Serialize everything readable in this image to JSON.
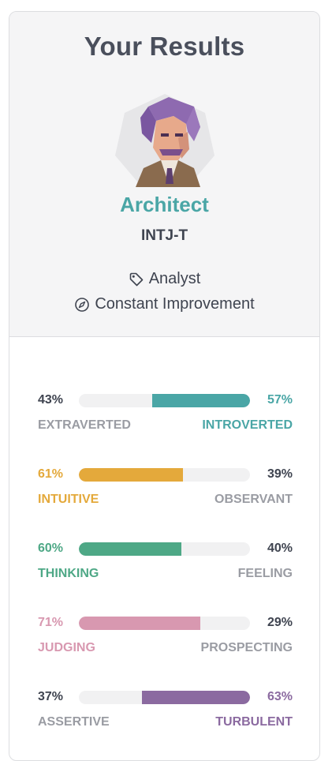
{
  "header": {
    "title": "Your Results"
  },
  "profile": {
    "avatar_icon": "architect-avatar",
    "type_name": "Architect",
    "type_code": "INTJ-T",
    "role_icon": "tag-icon",
    "role": "Analyst",
    "strategy_icon": "compass-icon",
    "strategy": "Constant Improvement"
  },
  "colors": {
    "architect_teal": "#4aa6a6",
    "mind": "#4aa6a6",
    "energy": "#e4a93b",
    "nature": "#4ea886",
    "tactics": "#d898b0",
    "identity": "#8b6aa0",
    "muted": "#9a9ca3",
    "dark": "#3f4450"
  },
  "traits": [
    {
      "left_pct": "43%",
      "right_pct": "57%",
      "left_label": "EXTRAVERTED",
      "right_label": "INTROVERTED",
      "dominant": "right",
      "value": 57,
      "color": "#4aa6a6"
    },
    {
      "left_pct": "61%",
      "right_pct": "39%",
      "left_label": "INTUITIVE",
      "right_label": "OBSERVANT",
      "dominant": "left",
      "value": 61,
      "color": "#e4a93b"
    },
    {
      "left_pct": "60%",
      "right_pct": "40%",
      "left_label": "THINKING",
      "right_label": "FEELING",
      "dominant": "left",
      "value": 60,
      "color": "#4ea886"
    },
    {
      "left_pct": "71%",
      "right_pct": "29%",
      "left_label": "JUDGING",
      "right_label": "PROSPECTING",
      "dominant": "left",
      "value": 71,
      "color": "#d898b0"
    },
    {
      "left_pct": "37%",
      "right_pct": "63%",
      "left_label": "ASSERTIVE",
      "right_label": "TURBULENT",
      "dominant": "right",
      "value": 63,
      "color": "#8b6aa0"
    }
  ]
}
